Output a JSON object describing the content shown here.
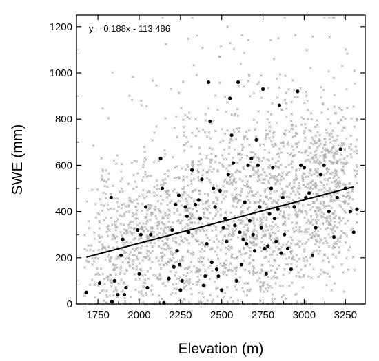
{
  "chart_data": {
    "type": "scatter",
    "title": "",
    "xlabel": "Elevation (m)",
    "ylabel": "SWE (mm)",
    "xlim": [
      1620,
      3370
    ],
    "ylim": [
      0,
      1250
    ],
    "xticks": [
      1750,
      2000,
      2250,
      2500,
      2750,
      3000,
      3250
    ],
    "yticks": [
      0,
      200,
      400,
      600,
      800,
      1000,
      1200
    ],
    "grid": false,
    "legend": "none",
    "annotation": "y = 0.188x - 113.486",
    "regression": {
      "slope": 0.188,
      "intercept": -113.486,
      "x_range": [
        1680,
        3300
      ]
    },
    "colors": {
      "background_points": "#a9a9a9",
      "sample_points": "#000000",
      "fit_line": "#000000"
    },
    "background_points": {
      "marker": "x",
      "description_count": 2600,
      "x_range": [
        1670,
        3320
      ],
      "y_range": [
        0,
        1240
      ]
    },
    "series": [
      {
        "marker": "dot",
        "x": [
          1680,
          1760,
          1830,
          1835,
          1850,
          1870,
          1890,
          1900,
          1910,
          1920,
          1990,
          2000,
          2010,
          2040,
          2050,
          2070,
          2130,
          2140,
          2150,
          2180,
          2200,
          2210,
          2220,
          2230,
          2240,
          2245,
          2250,
          2260,
          2280,
          2290,
          2300,
          2320,
          2340,
          2360,
          2370,
          2380,
          2390,
          2400,
          2410,
          2420,
          2430,
          2440,
          2450,
          2460,
          2470,
          2480,
          2490,
          2500,
          2510,
          2520,
          2530,
          2540,
          2550,
          2560,
          2570,
          2580,
          2590,
          2600,
          2610,
          2620,
          2630,
          2640,
          2650,
          2660,
          2670,
          2680,
          2690,
          2700,
          2710,
          2720,
          2730,
          2740,
          2750,
          2760,
          2770,
          2780,
          2790,
          2800,
          2810,
          2820,
          2830,
          2840,
          2850,
          2860,
          2870,
          2880,
          2900,
          2920,
          2940,
          2960,
          2980,
          3000,
          3010,
          3030,
          3050,
          3070,
          3100,
          3120,
          3150,
          3180,
          3200,
          3220,
          3250,
          3280,
          3300,
          3320
        ],
        "y": [
          50,
          90,
          460,
          10,
          100,
          40,
          210,
          280,
          40,
          70,
          320,
          130,
          300,
          420,
          70,
          300,
          630,
          500,
          5,
          110,
          320,
          160,
          430,
          230,
          470,
          170,
          60,
          100,
          420,
          380,
          310,
          580,
          430,
          450,
          370,
          540,
          80,
          120,
          260,
          960,
          790,
          180,
          500,
          420,
          150,
          120,
          490,
          60,
          330,
          370,
          270,
          560,
          890,
          730,
          610,
          340,
          100,
          960,
          310,
          170,
          280,
          440,
          260,
          600,
          360,
          630,
          300,
          230,
          710,
          600,
          420,
          330,
          930,
          240,
          130,
          250,
          390,
          500,
          590,
          370,
          270,
          410,
          860,
          220,
          460,
          300,
          240,
          150,
          420,
          920,
          600,
          590,
          460,
          480,
          210,
          330,
          560,
          600,
          400,
          290,
          460,
          670,
          500,
          400,
          310,
          410
        ],
        "name": ""
      }
    ]
  }
}
